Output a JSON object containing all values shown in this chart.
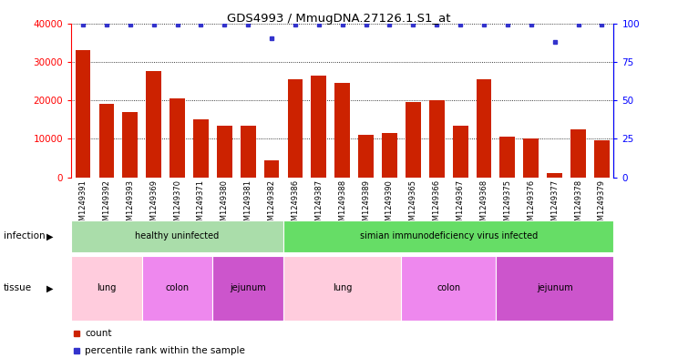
{
  "title": "GDS4993 / MmugDNA.27126.1.S1_at",
  "samples": [
    "GSM1249391",
    "GSM1249392",
    "GSM1249393",
    "GSM1249369",
    "GSM1249370",
    "GSM1249371",
    "GSM1249380",
    "GSM1249381",
    "GSM1249382",
    "GSM1249386",
    "GSM1249387",
    "GSM1249388",
    "GSM1249389",
    "GSM1249390",
    "GSM1249365",
    "GSM1249366",
    "GSM1249367",
    "GSM1249368",
    "GSM1249375",
    "GSM1249376",
    "GSM1249377",
    "GSM1249378",
    "GSM1249379"
  ],
  "counts": [
    33000,
    19000,
    17000,
    27500,
    20500,
    15000,
    13500,
    13500,
    4500,
    25500,
    26500,
    24500,
    11000,
    11500,
    19500,
    20000,
    13500,
    25500,
    10500,
    10000,
    1000,
    12500,
    9500
  ],
  "percentiles": [
    99,
    99,
    99,
    99,
    99,
    99,
    99,
    99,
    90,
    99,
    99,
    99,
    99,
    99,
    99,
    99,
    99,
    99,
    99,
    99,
    88,
    99,
    99
  ],
  "bar_color": "#cc2200",
  "dot_color": "#3333cc",
  "ylim_left": [
    0,
    40000
  ],
  "ylim_right": [
    0,
    100
  ],
  "yticks_left": [
    0,
    10000,
    20000,
    30000,
    40000
  ],
  "yticks_right": [
    0,
    25,
    50,
    75,
    100
  ],
  "infection_groups": [
    {
      "label": "healthy uninfected",
      "start": 0,
      "end": 9,
      "color": "#aaddaa"
    },
    {
      "label": "simian immunodeficiency virus infected",
      "start": 9,
      "end": 23,
      "color": "#66dd66"
    }
  ],
  "tissue_groups": [
    {
      "label": "lung",
      "start": 0,
      "end": 3,
      "color": "#ffccdd"
    },
    {
      "label": "colon",
      "start": 3,
      "end": 6,
      "color": "#ee88ee"
    },
    {
      "label": "jejunum",
      "start": 6,
      "end": 9,
      "color": "#cc55cc"
    },
    {
      "label": "lung",
      "start": 9,
      "end": 14,
      "color": "#ffccdd"
    },
    {
      "label": "colon",
      "start": 14,
      "end": 18,
      "color": "#ee88ee"
    },
    {
      "label": "jejunum",
      "start": 18,
      "end": 23,
      "color": "#cc55cc"
    }
  ],
  "legend_count_color": "#cc2200",
  "legend_dot_color": "#3333cc",
  "ticklabel_bg": "#cccccc",
  "plot_bg": "#ffffff"
}
